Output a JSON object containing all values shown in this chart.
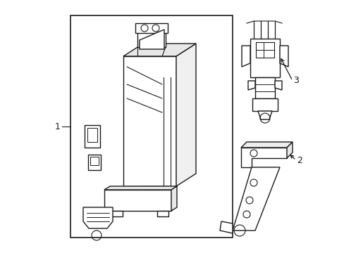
{
  "bg_color": "#ffffff",
  "line_color": "#1a1a1a",
  "line_width": 1.0,
  "fig_width": 4.89,
  "fig_height": 3.6,
  "dpi": 100
}
